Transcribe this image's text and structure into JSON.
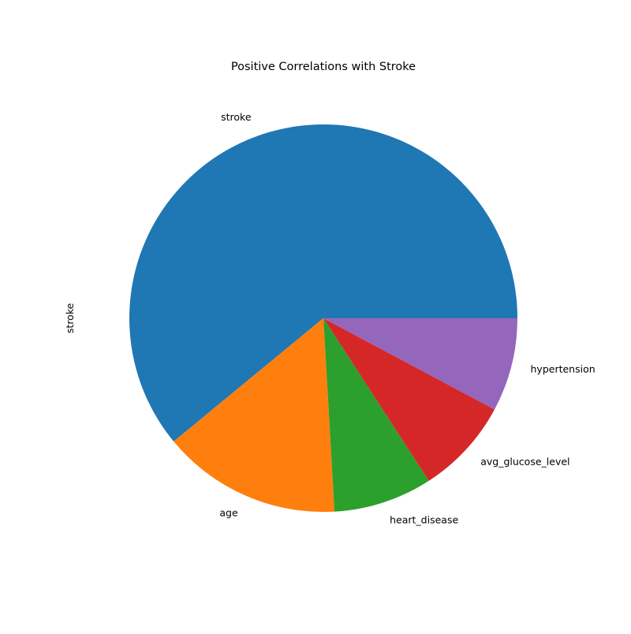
{
  "chart_data": {
    "type": "pie",
    "title": "Positive Correlations with Stroke",
    "ylabel": "stroke",
    "categories": [
      "stroke",
      "age",
      "heart_disease",
      "avg_glucose_level",
      "hypertension"
    ],
    "values": [
      1.0,
      0.245,
      0.135,
      0.132,
      0.128
    ],
    "colors": [
      "#1f77b4",
      "#ff7f0e",
      "#2ca02c",
      "#d62728",
      "#9467bd"
    ],
    "start_angle_deg": 0,
    "direction": "counterclockwise",
    "legend": "none"
  }
}
